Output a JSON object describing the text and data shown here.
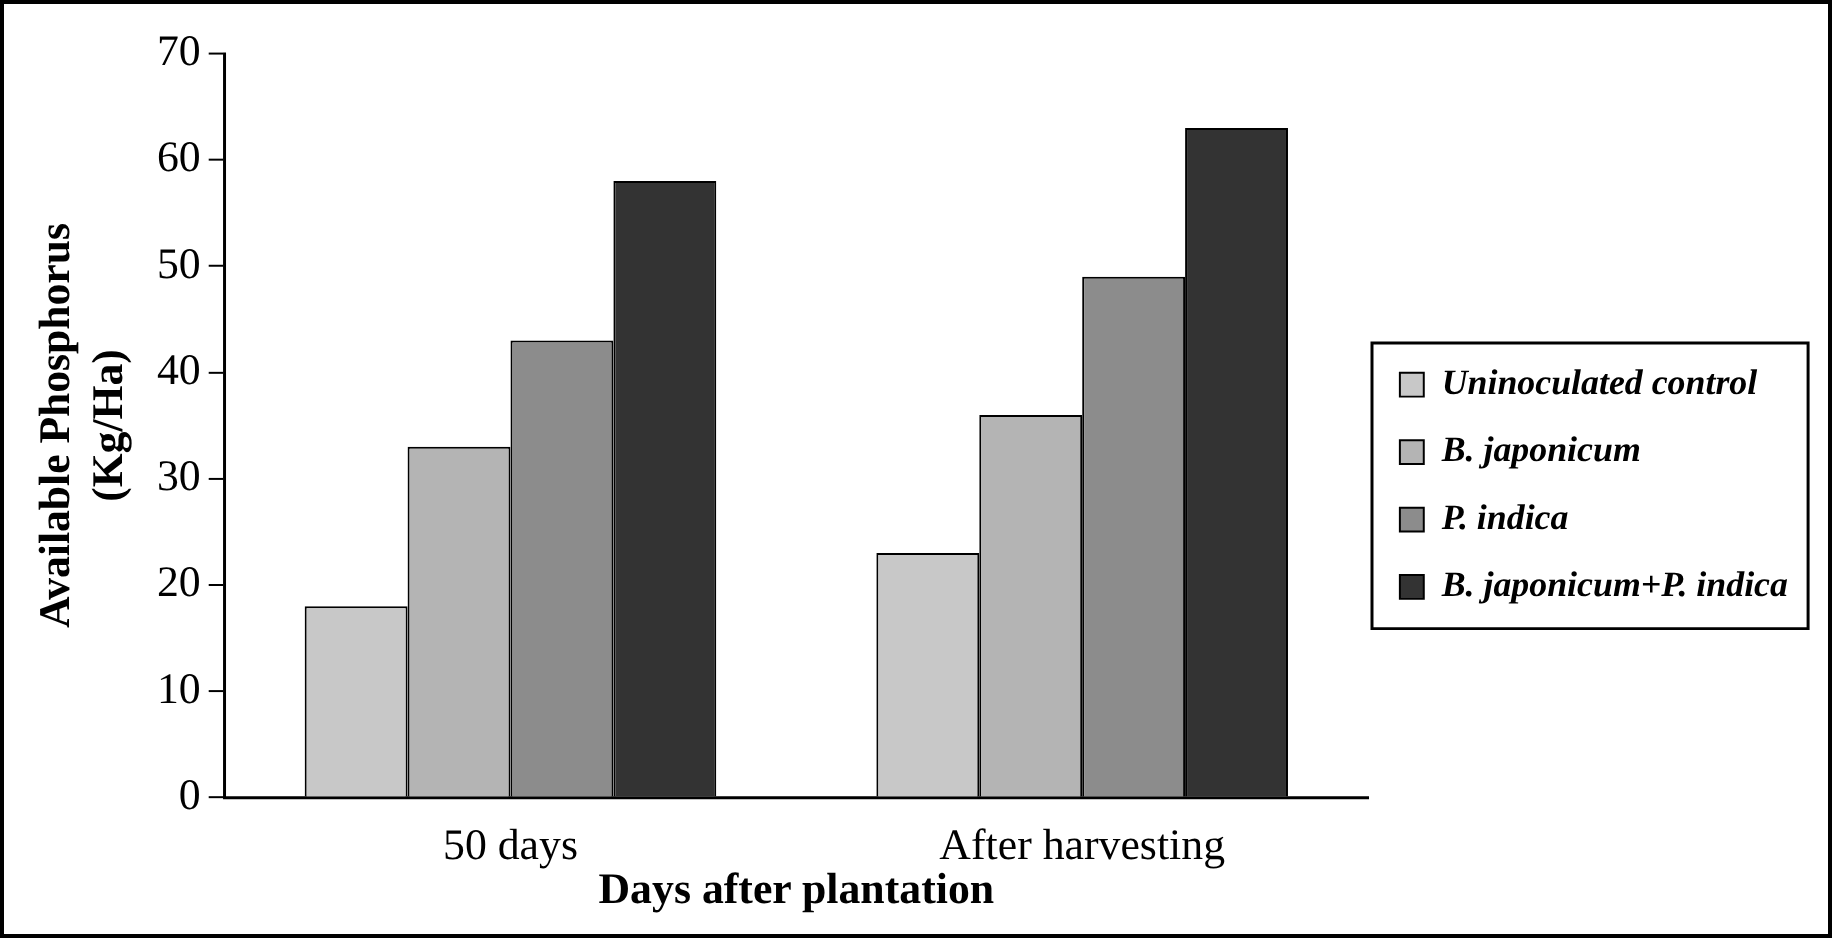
{
  "chart_data": {
    "type": "bar",
    "xlabel": "Days after plantation",
    "ylabel": "Available Phosphorus\n(Kg/Ha)",
    "categories": [
      "50 days",
      "After harvesting"
    ],
    "series": [
      {
        "name": "Uninoculated control",
        "color": "#c8c8c8",
        "values": [
          18,
          23
        ]
      },
      {
        "name": "B. japonicum",
        "color": "#b4b4b4",
        "values": [
          33,
          36
        ]
      },
      {
        "name": "P. indica",
        "color": "#8c8c8c",
        "values": [
          43,
          49
        ]
      },
      {
        "name": "B. japonicum+P. indica",
        "color": "#333333",
        "values": [
          58,
          63
        ]
      }
    ],
    "ylim": [
      0,
      70
    ],
    "yticks": [
      0,
      10,
      20,
      30,
      40,
      50,
      60,
      70
    ],
    "grid": false,
    "legend": "right"
  }
}
